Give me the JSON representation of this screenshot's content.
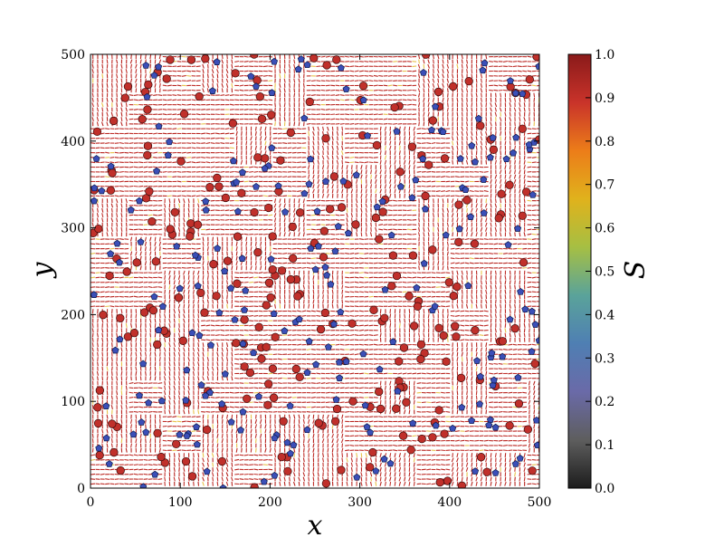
{
  "chart_data": {
    "type": "nematic-director-field",
    "xlabel": "x",
    "ylabel": "y",
    "colorbar_label": "S",
    "xlim": [
      0,
      500
    ],
    "ylim": [
      0,
      500
    ],
    "x_ticks": [
      "0",
      "100",
      "200",
      "300",
      "400",
      "500"
    ],
    "y_ticks": [
      "0",
      "100",
      "200",
      "300",
      "400",
      "500"
    ],
    "colorbar": {
      "range": [
        0.0,
        1.0
      ],
      "ticks": [
        "0.0",
        "0.1",
        "0.2",
        "0.3",
        "0.4",
        "0.5",
        "0.6",
        "0.7",
        "0.8",
        "0.9",
        "1.0"
      ],
      "colormap_stops": [
        "#1c1c1c",
        "#5e5e5e",
        "#6a6aa8",
        "#4f7fb3",
        "#5aa39a",
        "#a6bf43",
        "#e0b21c",
        "#ec7d19",
        "#c9332a",
        "#8a1a1a"
      ]
    },
    "grid": false,
    "defects": {
      "plus_half": {
        "color": "#c0302b",
        "marker": "circle",
        "count_estimate": 260
      },
      "minus_half": {
        "color": "#3b4fb8",
        "marker": "pentagon",
        "count_estimate": 230
      }
    },
    "director_field": {
      "typical_S": 0.9,
      "color": "#c0302b"
    }
  }
}
